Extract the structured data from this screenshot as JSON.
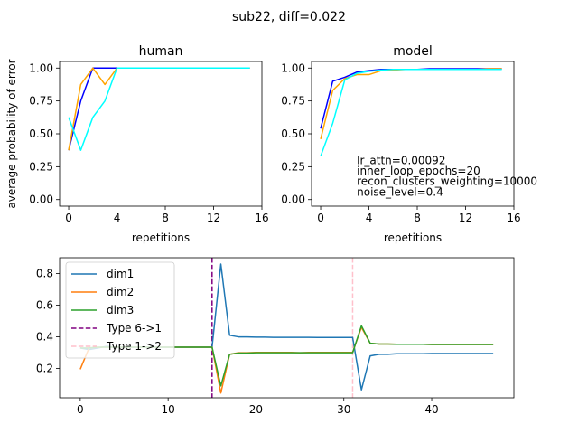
{
  "figure": {
    "suptitle": "sub22, diff=0.022"
  },
  "chart_data": [
    {
      "type": "line",
      "title": "human",
      "xlabel": "repetitions",
      "ylabel": "average probability of error",
      "xlim": [
        -0.75,
        16
      ],
      "ylim": [
        -0.05,
        1.05
      ],
      "xticks": [
        0,
        4,
        8,
        12,
        16
      ],
      "yticks": [
        0.0,
        0.25,
        0.5,
        0.75,
        1.0
      ],
      "ytick_labels": [
        "0.00",
        "0.25",
        "0.50",
        "0.75",
        "1.00"
      ],
      "series": [
        {
          "color": "#0000ff",
          "x": [
            0,
            1,
            2,
            3,
            4,
            5,
            6,
            7,
            8,
            9,
            10,
            11,
            12,
            13,
            14,
            15
          ],
          "values": [
            0.375,
            0.75,
            1.0,
            1.0,
            1.0,
            1.0,
            1.0,
            1.0,
            1.0,
            1.0,
            1.0,
            1.0,
            1.0,
            1.0,
            1.0,
            1.0
          ]
        },
        {
          "color": "#ffa500",
          "x": [
            0,
            1,
            2,
            3,
            4,
            5,
            6,
            7,
            8,
            9,
            10,
            11,
            12,
            13,
            14,
            15
          ],
          "values": [
            0.375,
            0.875,
            1.0,
            0.875,
            1.0,
            1.0,
            1.0,
            1.0,
            1.0,
            1.0,
            1.0,
            1.0,
            1.0,
            1.0,
            1.0,
            1.0
          ]
        },
        {
          "color": "#00ffff",
          "x": [
            0,
            1,
            2,
            3,
            4,
            5,
            6,
            7,
            8,
            9,
            10,
            11,
            12,
            13,
            14,
            15
          ],
          "values": [
            0.625,
            0.375,
            0.625,
            0.75,
            1.0,
            1.0,
            1.0,
            1.0,
            1.0,
            1.0,
            1.0,
            1.0,
            1.0,
            1.0,
            1.0,
            1.0
          ]
        }
      ]
    },
    {
      "type": "line",
      "title": "model",
      "xlabel": "repetitions",
      "ylabel": "",
      "xlim": [
        -0.75,
        16
      ],
      "ylim": [
        -0.05,
        1.05
      ],
      "xticks": [
        0,
        4,
        8,
        12,
        16
      ],
      "yticks": [
        0.0,
        0.25,
        0.5,
        0.75,
        1.0
      ],
      "ytick_labels": [
        "0.00",
        "0.25",
        "0.50",
        "0.75",
        "1.00"
      ],
      "annotations": [
        {
          "text": "lr_attn=0.00092",
          "x": 3,
          "y": 0.27
        },
        {
          "text": "inner_loop_epochs=20",
          "x": 3,
          "y": 0.19
        },
        {
          "text": "recon_clusters_weighting=10000",
          "x": 3,
          "y": 0.11
        },
        {
          "text": "noise_level=0.4",
          "x": 3,
          "y": 0.03
        }
      ],
      "series": [
        {
          "color": "#0000ff",
          "x": [
            0,
            1,
            2,
            3,
            4,
            5,
            6,
            7,
            8,
            9,
            10,
            11,
            12,
            13,
            14,
            15
          ],
          "values": [
            0.54,
            0.9,
            0.93,
            0.97,
            0.98,
            0.99,
            0.99,
            0.99,
            0.99,
            0.995,
            0.995,
            0.995,
            0.995,
            0.995,
            0.995,
            0.995
          ]
        },
        {
          "color": "#ffa500",
          "x": [
            0,
            1,
            2,
            3,
            4,
            5,
            6,
            7,
            8,
            9,
            10,
            11,
            12,
            13,
            14,
            15
          ],
          "values": [
            0.46,
            0.83,
            0.92,
            0.95,
            0.95,
            0.98,
            0.985,
            0.99,
            0.99,
            0.99,
            0.99,
            0.99,
            0.99,
            0.99,
            0.995,
            0.995
          ]
        },
        {
          "color": "#00ffff",
          "x": [
            0,
            1,
            2,
            3,
            4,
            5,
            6,
            7,
            8,
            9,
            10,
            11,
            12,
            13,
            14,
            15
          ],
          "values": [
            0.33,
            0.58,
            0.91,
            0.96,
            0.975,
            0.985,
            0.99,
            0.99,
            0.99,
            0.99,
            0.99,
            0.99,
            0.99,
            0.99,
            0.99,
            0.99
          ]
        }
      ]
    },
    {
      "type": "line",
      "title": "",
      "xlabel": "",
      "ylabel": "",
      "xlim": [
        -2.35,
        49.35
      ],
      "ylim": [
        0.015,
        0.9
      ],
      "xticks": [
        0,
        10,
        20,
        30,
        40
      ],
      "yticks": [
        0.2,
        0.4,
        0.6,
        0.8
      ],
      "ytick_labels": [
        "0.2",
        "0.4",
        "0.6",
        "0.8"
      ],
      "legend": "upper-left",
      "series": [
        {
          "name": "dim1",
          "color": "#1f77b4",
          "x": [
            0,
            1,
            2,
            3,
            4,
            5,
            6,
            7,
            8,
            9,
            10,
            11,
            12,
            13,
            14,
            15,
            16,
            17,
            18,
            19,
            20,
            21,
            22,
            23,
            24,
            25,
            26,
            27,
            28,
            29,
            30,
            31,
            32,
            33,
            34,
            35,
            36,
            37,
            38,
            39,
            40,
            41,
            42,
            43,
            44,
            45,
            46,
            47
          ],
          "values": [
            0.33,
            0.32,
            0.33,
            0.34,
            0.335,
            0.335,
            0.335,
            0.335,
            0.335,
            0.335,
            0.335,
            0.335,
            0.335,
            0.335,
            0.335,
            0.335,
            0.86,
            0.41,
            0.4,
            0.4,
            0.398,
            0.398,
            0.397,
            0.397,
            0.397,
            0.397,
            0.397,
            0.396,
            0.396,
            0.396,
            0.396,
            0.396,
            0.065,
            0.28,
            0.29,
            0.29,
            0.293,
            0.293,
            0.293,
            0.293,
            0.295,
            0.295,
            0.295,
            0.295,
            0.295,
            0.295,
            0.295,
            0.295
          ]
        },
        {
          "name": "dim2",
          "color": "#ff7f0e",
          "x": [
            0,
            1,
            2,
            3,
            4,
            5,
            6,
            7,
            8,
            9,
            10,
            11,
            12,
            13,
            14,
            15,
            16,
            17,
            18,
            19,
            20,
            21,
            22,
            23,
            24,
            25,
            26,
            27,
            28,
            29,
            30,
            31,
            32,
            33,
            34,
            35,
            36,
            37,
            38,
            39,
            40,
            41,
            42,
            43,
            44,
            45,
            46,
            47
          ],
          "values": [
            0.195,
            0.33,
            0.335,
            0.335,
            0.335,
            0.335,
            0.335,
            0.335,
            0.335,
            0.335,
            0.335,
            0.335,
            0.335,
            0.335,
            0.335,
            0.335,
            0.045,
            0.29,
            0.3,
            0.3,
            0.302,
            0.302,
            0.302,
            0.302,
            0.302,
            0.3,
            0.302,
            0.302,
            0.302,
            0.302,
            0.302,
            0.302,
            0.46,
            0.36,
            0.355,
            0.355,
            0.353,
            0.353,
            0.353,
            0.353,
            0.352,
            0.352,
            0.352,
            0.352,
            0.352,
            0.352,
            0.352,
            0.352
          ]
        },
        {
          "name": "dim3",
          "color": "#2ca02c",
          "x": [
            0,
            1,
            2,
            3,
            4,
            5,
            6,
            7,
            8,
            9,
            10,
            11,
            12,
            13,
            14,
            15,
            16,
            17,
            18,
            19,
            20,
            21,
            22,
            23,
            24,
            25,
            26,
            27,
            28,
            29,
            30,
            31,
            32,
            33,
            34,
            35,
            36,
            37,
            38,
            39,
            40,
            41,
            42,
            43,
            44,
            45,
            46,
            47
          ],
          "values": [
            0.33,
            0.33,
            0.335,
            0.335,
            0.335,
            0.335,
            0.335,
            0.335,
            0.335,
            0.335,
            0.335,
            0.335,
            0.335,
            0.335,
            0.335,
            0.335,
            0.09,
            0.29,
            0.298,
            0.298,
            0.3,
            0.3,
            0.3,
            0.3,
            0.3,
            0.3,
            0.3,
            0.3,
            0.3,
            0.3,
            0.3,
            0.3,
            0.47,
            0.36,
            0.355,
            0.355,
            0.353,
            0.353,
            0.353,
            0.353,
            0.352,
            0.352,
            0.352,
            0.352,
            0.352,
            0.352,
            0.352,
            0.352
          ]
        }
      ],
      "vlines": [
        {
          "name": "Type 6->1",
          "x": 15,
          "color": "#800080"
        },
        {
          "name": "Type 1->2",
          "x": 31,
          "color": "#ffc0cb"
        }
      ]
    }
  ]
}
